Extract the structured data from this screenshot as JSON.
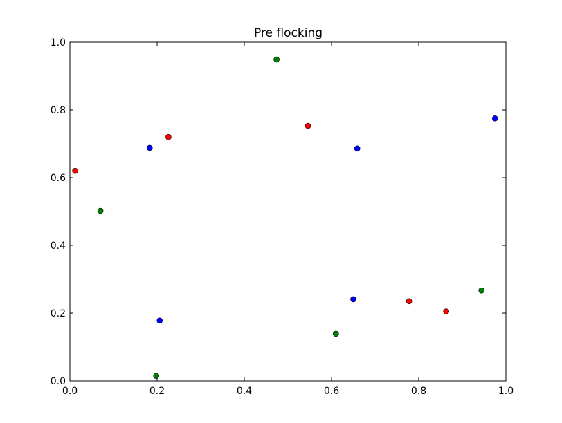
{
  "chart_data": {
    "type": "scatter",
    "title": "Pre flocking",
    "xlabel": "",
    "ylabel": "",
    "xlim": [
      0.0,
      1.0
    ],
    "ylim": [
      0.0,
      1.0
    ],
    "xticks": [
      "0.0",
      "0.2",
      "0.4",
      "0.6",
      "0.8",
      "1.0"
    ],
    "yticks": [
      "0.0",
      "0.2",
      "0.4",
      "0.6",
      "0.8",
      "1.0"
    ],
    "grid": false,
    "series": [
      {
        "color": "#ff0000",
        "points": [
          {
            "x": 0.012,
            "y": 0.62
          },
          {
            "x": 0.226,
            "y": 0.72
          },
          {
            "x": 0.546,
            "y": 0.753
          },
          {
            "x": 0.778,
            "y": 0.235
          },
          {
            "x": 0.863,
            "y": 0.205
          }
        ]
      },
      {
        "color": "#0000ff",
        "points": [
          {
            "x": 0.183,
            "y": 0.688
          },
          {
            "x": 0.206,
            "y": 0.178
          },
          {
            "x": 0.65,
            "y": 0.241
          },
          {
            "x": 0.659,
            "y": 0.686
          },
          {
            "x": 0.975,
            "y": 0.775
          }
        ]
      },
      {
        "color": "#008000",
        "points": [
          {
            "x": 0.07,
            "y": 0.502
          },
          {
            "x": 0.198,
            "y": 0.015
          },
          {
            "x": 0.474,
            "y": 0.949
          },
          {
            "x": 0.61,
            "y": 0.139
          },
          {
            "x": 0.944,
            "y": 0.267
          }
        ]
      }
    ]
  }
}
